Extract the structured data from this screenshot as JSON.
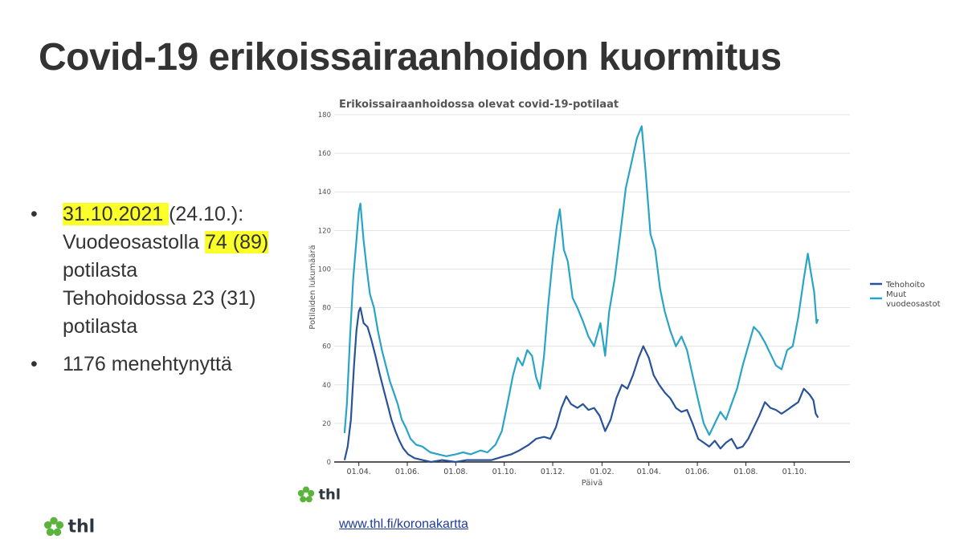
{
  "slide": {
    "title": "Covid-19 erikoissairaanhoidon kuormitus",
    "bullets": [
      {
        "date_highlight": "31.10.2021 ",
        "date_rest": "(24.10.):",
        "ward_prefix": "Vuodeosastolla ",
        "ward_highlight": "74 (89)",
        "ward_suffix": "potilasta",
        "icu_line": "Tehohoidossa 23 (31)",
        "icu_suffix": "potilasta"
      },
      {
        "text": "1176 menehtynyttä"
      }
    ],
    "bullet_symbol": "•",
    "link_text": "www.thl.fi/koronakartta",
    "logo_text": "thl",
    "highlight_color": "#fbff2a"
  },
  "chart_data": {
    "type": "line",
    "title": "Erikoissairaanhoidossa olevat covid-19-potilaat",
    "xlabel": "Päivä",
    "ylabel": "Potilaiden lukumäärä",
    "ylim": [
      0,
      180
    ],
    "yticks": [
      0,
      20,
      40,
      60,
      80,
      100,
      120,
      140,
      160,
      180
    ],
    "x_tick_labels": [
      "01.04.",
      "01.06.",
      "01.08.",
      "01.10.",
      "01.12.",
      "01.02.",
      "01.04.",
      "01.06.",
      "01.08.",
      "01.10."
    ],
    "x_tick_dates": [
      "2020-04-01",
      "2020-06-01",
      "2020-08-01",
      "2020-10-01",
      "2020-12-01",
      "2021-02-01",
      "2021-04-01",
      "2021-06-01",
      "2021-08-01",
      "2021-10-01"
    ],
    "xlim": [
      "2020-03-01",
      "2021-12-10"
    ],
    "grid": "horizontal",
    "legend_position": "right",
    "series": [
      {
        "name": "Tehohoito",
        "color": "#2a5298",
        "points": [
          [
            "2020-03-14",
            1
          ],
          [
            "2020-03-18",
            8
          ],
          [
            "2020-03-22",
            22
          ],
          [
            "2020-03-26",
            50
          ],
          [
            "2020-03-29",
            68
          ],
          [
            "2020-04-01",
            78
          ],
          [
            "2020-04-03",
            80
          ],
          [
            "2020-04-07",
            72
          ],
          [
            "2020-04-12",
            70
          ],
          [
            "2020-04-17",
            63
          ],
          [
            "2020-04-22",
            55
          ],
          [
            "2020-04-27",
            46
          ],
          [
            "2020-05-02",
            38
          ],
          [
            "2020-05-07",
            30
          ],
          [
            "2020-05-12",
            22
          ],
          [
            "2020-05-17",
            16
          ],
          [
            "2020-05-22",
            11
          ],
          [
            "2020-05-27",
            7
          ],
          [
            "2020-06-02",
            4
          ],
          [
            "2020-06-10",
            2
          ],
          [
            "2020-06-20",
            1
          ],
          [
            "2020-07-01",
            0
          ],
          [
            "2020-07-15",
            1
          ],
          [
            "2020-08-01",
            0
          ],
          [
            "2020-08-15",
            1
          ],
          [
            "2020-09-01",
            1
          ],
          [
            "2020-09-15",
            1
          ],
          [
            "2020-10-01",
            3
          ],
          [
            "2020-10-10",
            4
          ],
          [
            "2020-10-20",
            6
          ],
          [
            "2020-11-01",
            9
          ],
          [
            "2020-11-10",
            12
          ],
          [
            "2020-11-20",
            13
          ],
          [
            "2020-11-28",
            12
          ],
          [
            "2020-12-05",
            18
          ],
          [
            "2020-12-12",
            28
          ],
          [
            "2020-12-18",
            34
          ],
          [
            "2020-12-24",
            30
          ],
          [
            "2021-01-01",
            28
          ],
          [
            "2021-01-08",
            30
          ],
          [
            "2021-01-15",
            27
          ],
          [
            "2021-01-22",
            28
          ],
          [
            "2021-01-29",
            24
          ],
          [
            "2021-02-05",
            16
          ],
          [
            "2021-02-12",
            22
          ],
          [
            "2021-02-19",
            33
          ],
          [
            "2021-02-26",
            40
          ],
          [
            "2021-03-05",
            38
          ],
          [
            "2021-03-12",
            45
          ],
          [
            "2021-03-19",
            54
          ],
          [
            "2021-03-25",
            60
          ],
          [
            "2021-04-01",
            54
          ],
          [
            "2021-04-07",
            45
          ],
          [
            "2021-04-14",
            40
          ],
          [
            "2021-04-21",
            36
          ],
          [
            "2021-04-28",
            33
          ],
          [
            "2021-05-05",
            28
          ],
          [
            "2021-05-12",
            26
          ],
          [
            "2021-05-19",
            27
          ],
          [
            "2021-05-26",
            20
          ],
          [
            "2021-06-02",
            12
          ],
          [
            "2021-06-09",
            10
          ],
          [
            "2021-06-16",
            8
          ],
          [
            "2021-06-23",
            11
          ],
          [
            "2021-06-30",
            7
          ],
          [
            "2021-07-07",
            10
          ],
          [
            "2021-07-14",
            12
          ],
          [
            "2021-07-21",
            7
          ],
          [
            "2021-07-28",
            8
          ],
          [
            "2021-08-04",
            12
          ],
          [
            "2021-08-11",
            18
          ],
          [
            "2021-08-18",
            24
          ],
          [
            "2021-08-25",
            31
          ],
          [
            "2021-09-01",
            28
          ],
          [
            "2021-09-08",
            27
          ],
          [
            "2021-09-15",
            25
          ],
          [
            "2021-09-22",
            27
          ],
          [
            "2021-09-29",
            29
          ],
          [
            "2021-10-06",
            31
          ],
          [
            "2021-10-13",
            38
          ],
          [
            "2021-10-20",
            35
          ],
          [
            "2021-10-25",
            32
          ],
          [
            "2021-10-28",
            25
          ],
          [
            "2021-10-31",
            23
          ]
        ]
      },
      {
        "name": "Muut vuodeosastot",
        "color": "#2aa4c6",
        "points": [
          [
            "2020-03-14",
            15
          ],
          [
            "2020-03-17",
            30
          ],
          [
            "2020-03-21",
            65
          ],
          [
            "2020-03-25",
            95
          ],
          [
            "2020-03-29",
            115
          ],
          [
            "2020-04-01",
            130
          ],
          [
            "2020-04-03",
            134
          ],
          [
            "2020-04-07",
            115
          ],
          [
            "2020-04-11",
            100
          ],
          [
            "2020-04-15",
            87
          ],
          [
            "2020-04-20",
            80
          ],
          [
            "2020-04-25",
            68
          ],
          [
            "2020-04-30",
            58
          ],
          [
            "2020-05-05",
            50
          ],
          [
            "2020-05-10",
            42
          ],
          [
            "2020-05-15",
            36
          ],
          [
            "2020-05-20",
            30
          ],
          [
            "2020-05-25",
            22
          ],
          [
            "2020-05-30",
            18
          ],
          [
            "2020-06-05",
            12
          ],
          [
            "2020-06-12",
            9
          ],
          [
            "2020-06-20",
            8
          ],
          [
            "2020-06-30",
            5
          ],
          [
            "2020-07-10",
            4
          ],
          [
            "2020-07-20",
            3
          ],
          [
            "2020-08-01",
            4
          ],
          [
            "2020-08-10",
            5
          ],
          [
            "2020-08-20",
            4
          ],
          [
            "2020-09-01",
            6
          ],
          [
            "2020-09-10",
            5
          ],
          [
            "2020-09-20",
            9
          ],
          [
            "2020-09-28",
            16
          ],
          [
            "2020-10-05",
            30
          ],
          [
            "2020-10-12",
            45
          ],
          [
            "2020-10-18",
            54
          ],
          [
            "2020-10-24",
            50
          ],
          [
            "2020-10-30",
            58
          ],
          [
            "2020-11-05",
            55
          ],
          [
            "2020-11-10",
            44
          ],
          [
            "2020-11-15",
            38
          ],
          [
            "2020-11-20",
            55
          ],
          [
            "2020-11-25",
            80
          ],
          [
            "2020-12-01",
            105
          ],
          [
            "2020-12-06",
            122
          ],
          [
            "2020-12-10",
            131
          ],
          [
            "2020-12-15",
            110
          ],
          [
            "2020-12-20",
            104
          ],
          [
            "2020-12-26",
            85
          ],
          [
            "2021-01-01",
            80
          ],
          [
            "2021-01-08",
            73
          ],
          [
            "2021-01-15",
            65
          ],
          [
            "2021-01-22",
            60
          ],
          [
            "2021-01-30",
            72
          ],
          [
            "2021-02-05",
            55
          ],
          [
            "2021-02-10",
            78
          ],
          [
            "2021-02-17",
            95
          ],
          [
            "2021-02-24",
            118
          ],
          [
            "2021-03-03",
            142
          ],
          [
            "2021-03-10",
            155
          ],
          [
            "2021-03-17",
            168
          ],
          [
            "2021-03-23",
            174
          ],
          [
            "2021-03-28",
            150
          ],
          [
            "2021-04-03",
            118
          ],
          [
            "2021-04-09",
            110
          ],
          [
            "2021-04-15",
            90
          ],
          [
            "2021-04-21",
            78
          ],
          [
            "2021-04-28",
            68
          ],
          [
            "2021-05-05",
            60
          ],
          [
            "2021-05-12",
            65
          ],
          [
            "2021-05-19",
            58
          ],
          [
            "2021-05-26",
            45
          ],
          [
            "2021-06-02",
            32
          ],
          [
            "2021-06-09",
            20
          ],
          [
            "2021-06-16",
            14
          ],
          [
            "2021-06-23",
            20
          ],
          [
            "2021-06-30",
            26
          ],
          [
            "2021-07-07",
            22
          ],
          [
            "2021-07-14",
            30
          ],
          [
            "2021-07-21",
            38
          ],
          [
            "2021-07-28",
            50
          ],
          [
            "2021-08-04",
            60
          ],
          [
            "2021-08-11",
            70
          ],
          [
            "2021-08-18",
            67
          ],
          [
            "2021-08-25",
            62
          ],
          [
            "2021-09-01",
            56
          ],
          [
            "2021-09-08",
            50
          ],
          [
            "2021-09-15",
            48
          ],
          [
            "2021-09-22",
            58
          ],
          [
            "2021-09-29",
            60
          ],
          [
            "2021-10-06",
            75
          ],
          [
            "2021-10-13",
            95
          ],
          [
            "2021-10-18",
            108
          ],
          [
            "2021-10-22",
            98
          ],
          [
            "2021-10-26",
            88
          ],
          [
            "2021-10-29",
            72
          ],
          [
            "2021-10-31",
            74
          ]
        ]
      }
    ]
  }
}
